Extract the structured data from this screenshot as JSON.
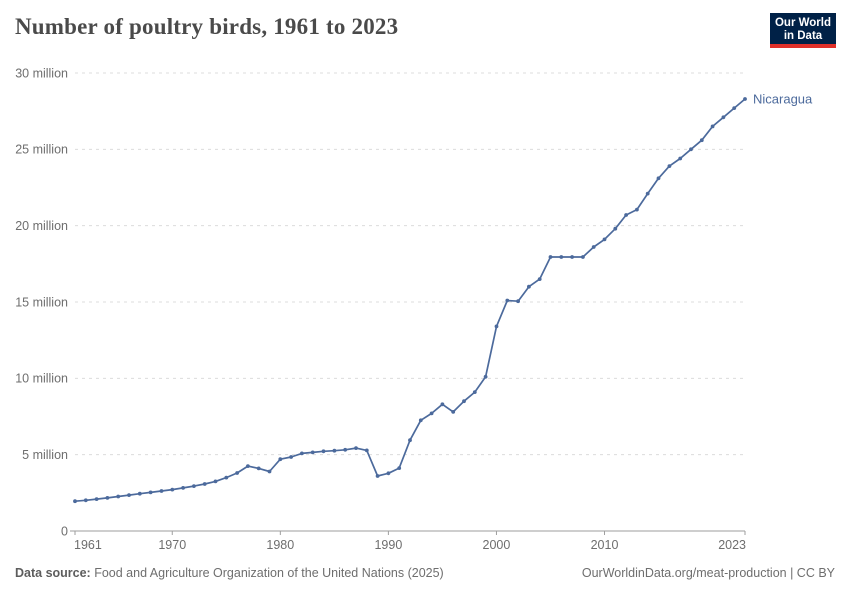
{
  "header": {
    "title": "Number of poultry birds, 1961 to 2023",
    "logo": {
      "line1": "Our World",
      "line2": "in Data",
      "bg_color": "#002147",
      "stripe_color": "#e0302a",
      "text_color": "#ffffff"
    }
  },
  "chart_data": {
    "type": "line",
    "title": "Number of poultry birds, 1961 to 2023",
    "unit": "million birds",
    "xlabel": "",
    "ylabel": "",
    "xlim": [
      1961,
      2023
    ],
    "ylim_millions": [
      0,
      30
    ],
    "grid": "horizontal-dashed",
    "legend_position": "end-of-line-label",
    "x_ticks": [
      1961,
      1970,
      1980,
      1990,
      2000,
      2010,
      2023
    ],
    "y_ticks": [
      {
        "value_millions": 0,
        "label": "0"
      },
      {
        "value_millions": 5,
        "label": "5 million"
      },
      {
        "value_millions": 10,
        "label": "10 million"
      },
      {
        "value_millions": 15,
        "label": "15 million"
      },
      {
        "value_millions": 20,
        "label": "20 million"
      },
      {
        "value_millions": 25,
        "label": "25 million"
      },
      {
        "value_millions": 30,
        "label": "30 million"
      }
    ],
    "series": [
      {
        "name": "Nicaragua",
        "color": "#4C6A9C",
        "x": [
          1961,
          1962,
          1963,
          1964,
          1965,
          1966,
          1967,
          1968,
          1969,
          1970,
          1971,
          1972,
          1973,
          1974,
          1975,
          1976,
          1977,
          1978,
          1979,
          1980,
          1981,
          1982,
          1983,
          1984,
          1985,
          1986,
          1987,
          1988,
          1989,
          1990,
          1991,
          1992,
          1993,
          1994,
          1995,
          1996,
          1997,
          1998,
          1999,
          2000,
          2001,
          2002,
          2003,
          2004,
          2005,
          2006,
          2007,
          2008,
          2009,
          2010,
          2011,
          2012,
          2013,
          2014,
          2015,
          2016,
          2017,
          2018,
          2019,
          2020,
          2021,
          2022,
          2023
        ],
        "values_millions": [
          1.95,
          2.01,
          2.09,
          2.17,
          2.26,
          2.35,
          2.44,
          2.53,
          2.62,
          2.71,
          2.82,
          2.94,
          3.08,
          3.25,
          3.5,
          3.8,
          4.25,
          4.1,
          3.9,
          4.7,
          4.85,
          5.08,
          5.15,
          5.22,
          5.26,
          5.32,
          5.43,
          5.28,
          3.6,
          3.78,
          4.12,
          5.95,
          7.25,
          7.7,
          8.3,
          7.8,
          8.5,
          9.1,
          10.1,
          13.4,
          15.1,
          15.05,
          16.0,
          16.5,
          17.95,
          17.95,
          17.95,
          17.95,
          18.6,
          19.1,
          19.8,
          20.7,
          21.05,
          22.1,
          23.1,
          23.9,
          24.4,
          25.0,
          25.6,
          26.5,
          27.1,
          27.7,
          28.3
        ]
      }
    ],
    "end_label": "Nicaragua"
  },
  "style_colors": {
    "line": "#4C6A9C",
    "gridline": "#dcdcdc",
    "axis": "#9e9e9e",
    "tick_label": "#6e6e6e",
    "title": "#4a4a4a"
  },
  "footer": {
    "datasource_label": "Data source:",
    "datasource_text": " Food and Agriculture Organization of the United Nations (2025)",
    "link_text": "OurWorldinData.org/meat-production | CC BY"
  }
}
